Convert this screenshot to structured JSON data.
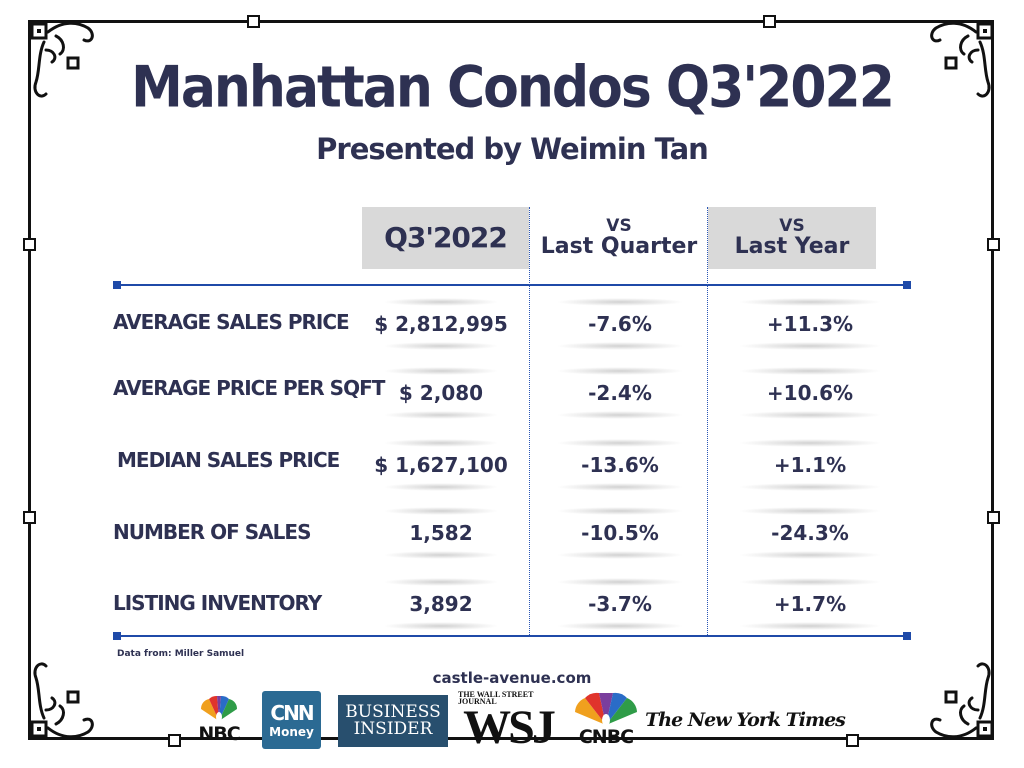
{
  "title": "Manhattan Condos Q3'2022",
  "subtitle": "Presented by Weimin Tan",
  "header": {
    "main": "Q3'2022",
    "quarter_top": "VS",
    "quarter_bottom": "Last Quarter",
    "year_top": "VS",
    "year_bottom": "Last Year"
  },
  "rows": [
    {
      "label": "AVERAGE SALES PRICE",
      "value": "$ 2,812,995",
      "vs_quarter": "-7.6%",
      "vs_year": "+11.3%"
    },
    {
      "label": "AVERAGE PRICE PER SQFT",
      "value": "$ 2,080",
      "vs_quarter": "-2.4%",
      "vs_year": "+10.6%"
    },
    {
      "label": "MEDIAN SALES PRICE",
      "value": "$ 1,627,100",
      "vs_quarter": "-13.6%",
      "vs_year": "+1.1%"
    },
    {
      "label": "NUMBER OF SALES",
      "value": "1,582",
      "vs_quarter": "-10.5%",
      "vs_year": "-24.3%"
    },
    {
      "label": "LISTING INVENTORY",
      "value": "3,892",
      "vs_quarter": "-3.7%",
      "vs_year": "+1.7%"
    }
  ],
  "source": "Data from: Miller Samuel",
  "website": "castle-avenue.com",
  "logos": {
    "nbc": "NBC",
    "cnn_top": "CNN",
    "cnn_bottom": "Money",
    "bi_top": "BUSINESS",
    "bi_bottom": "INSIDER",
    "wsj_top": "THE WALL STREET JOURNAL",
    "wsj": "WSJ",
    "cnbc": "CNBC",
    "nyt": "The New York Times"
  },
  "colors": {
    "text": "#2e3152",
    "accent_line": "#1f4aa8",
    "header_fill": "#d9d9d9",
    "frame": "#111111"
  }
}
